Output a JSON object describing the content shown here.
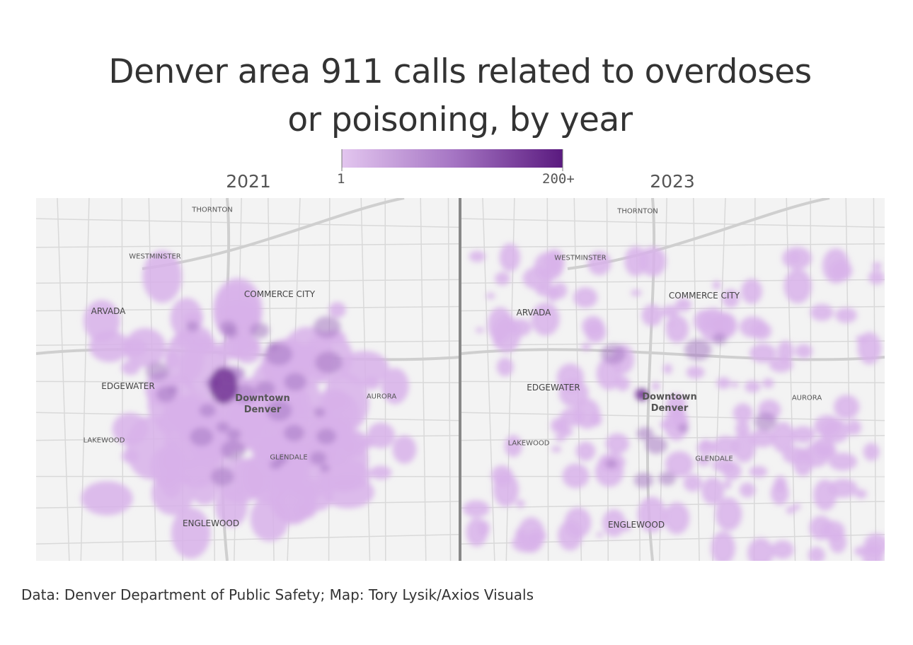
{
  "header": {
    "title": "Denver area 911 calls related to overdoses or poisoning, by year"
  },
  "legend": {
    "min_label": "1",
    "max_label": "200+"
  },
  "panels": [
    {
      "year": "2021",
      "places": [
        "THORNTON",
        "WESTMINSTER",
        "COMMERCE CITY",
        "ARVADA",
        "EDGEWATER",
        "Downtown Denver",
        "AURORA",
        "LAKEWOOD",
        "GLENDALE",
        "ENGLEWOOD"
      ]
    },
    {
      "year": "2023",
      "places": [
        "THORNTON",
        "WESTMINSTER",
        "COMMERCE CITY",
        "ARVADA",
        "EDGEWATER",
        "Downtown Denver",
        "AURORA",
        "LAKEWOOD",
        "GLENDALE",
        "ENGLEWOOD"
      ]
    }
  ],
  "footer": {
    "source": "Data: Denver Department of Public Safety; Map: Tory Lysik/Axios Visuals"
  }
}
